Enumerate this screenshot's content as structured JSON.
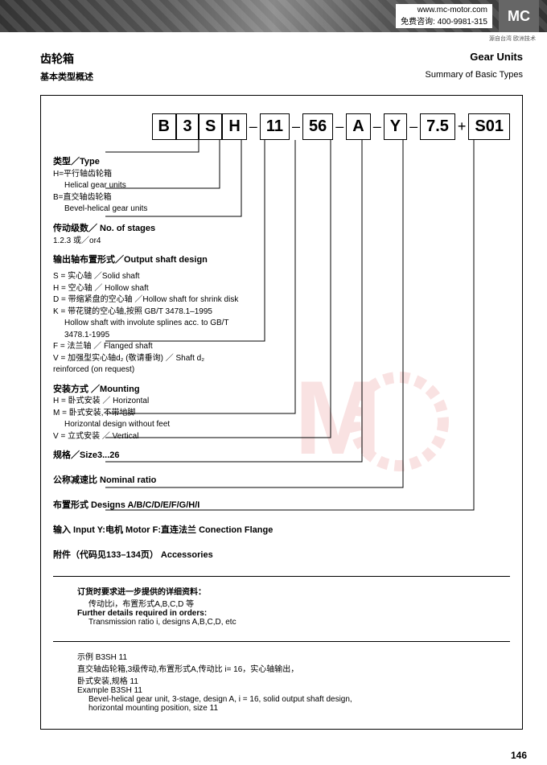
{
  "banner": {
    "url": "www.mc-motor.com",
    "phone": "免费咨询: 400-9981-315",
    "logo": "MC",
    "sublogo": "源自台湾 欧洲技术"
  },
  "title": {
    "cn": "齿轮箱",
    "en": "Gear Units",
    "sub_cn": "基本类型概述",
    "sub_en": "Summary of Basic Types"
  },
  "code": {
    "c0": "B",
    "c1": "3",
    "c2": "S",
    "c3": "H",
    "c4": "11",
    "c5": "56",
    "c6": "A",
    "c7": "Y",
    "c8": "7.5",
    "c9": "S01"
  },
  "sep": {
    "dash": "–",
    "plus": "+"
  },
  "sec": {
    "type": {
      "head": "类型／Type",
      "l1": "H=平行轴齿轮箱",
      "l2": "Helical gear units",
      "l3": "B=直交轴齿轮箱",
      "l4": "Bevel-helical gear units"
    },
    "stages": {
      "head": "传动级数／ No. of stages",
      "l1": "1.2.3 或／or4"
    },
    "shaft": {
      "head": "输出轴布置形式／Output shaft design",
      "l1": "S = 实心轴 ／Solid shaft",
      "l2": "H = 空心轴 ／ Hollow shaft",
      "l3": "D = 带缩紧盘的空心轴 ／Hollow shaft for shrink disk",
      "l4": "K = 带花键的空心轴,按照 GB/T 3478.1–1995",
      "l5": "Hollow shaft with involute splines acc. to GB/T",
      "l6": "3478.1-1995",
      "l7": "F = 法兰轴 ／ Flanged shaft",
      "l8": "V = 加强型实心轴d₂ (敬请垂询) ／ Shaft d₂",
      "l9": "reinforced (on request)"
    },
    "mount": {
      "head": "安装方式 ／Mounting",
      "l1": "H = 卧式安装 ／ Horizontal",
      "l2": "M = 卧式安装,不带地脚",
      "l3": "Horizontal design without feet",
      "l4": "V = 立式安装 ／ Vertical"
    },
    "size": {
      "head": "规格／Size3...26"
    },
    "ratio": {
      "head": "公称减速比  Nominal ratio"
    },
    "design": {
      "head": "布置形式 Designs A/B/C/D/E/F/G/H/I"
    },
    "input": {
      "head": "输入 Input Y:电机 Motor F:直连法兰 Conection Flange"
    },
    "acc": {
      "head": "附件（代码见133–134页）  Accessories"
    }
  },
  "order": {
    "h1": "订货时要求进一步提供的详细资料：",
    "l1": "传动比i，布置形式A,B,C,D 等",
    "h2": "Further details required in orders:",
    "l2": "Transmission ratio i, designs A,B,C,D, etc"
  },
  "example": {
    "h1": "示例  B3SH 11",
    "l1": "直交轴齿轮箱,3级传动,布置形式A,传动比 i= 16，实心轴输出，",
    "l2": "卧式安装,规格 11",
    "h2": "Example B3SH 11",
    "l3": "Bevel-helical gear unit, 3-stage, design A, i = 16, solid output shaft design,",
    "l4": "horizontal mounting position, size 11"
  },
  "pageno": "146",
  "svg": {
    "stroke": "#000",
    "width": 1,
    "lines": [
      "M196,0 V15 H80",
      "M222,0 V60 H80",
      "M249,0 V95 H80",
      "M278,0 V250 H80",
      "M316,0 V340 H80",
      "M360,0 V370 H80",
      "M399,0 V400 H80",
      "M450,0 V432 H80",
      "M538,0 V460 H80"
    ]
  },
  "colors": {
    "border": "#000000",
    "text": "#000000",
    "watermark": "#d44444",
    "watermark_opacity": 0.15
  }
}
